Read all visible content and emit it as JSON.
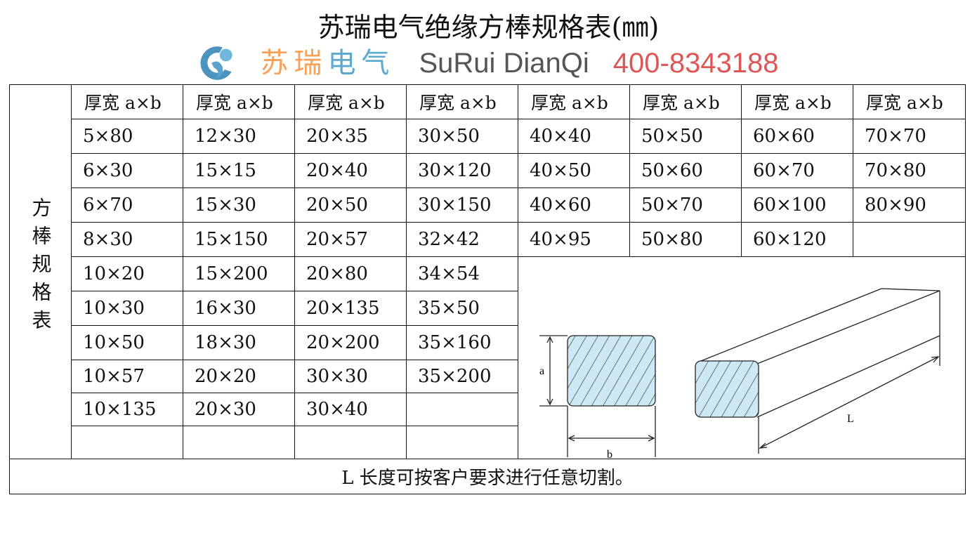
{
  "title": "苏瑞电气绝缘方棒规格表(㎜)",
  "side_label": "方棒规格表",
  "header_label": "厚宽 a×b",
  "columns": [
    [
      "5×80",
      "6×30",
      "6×70",
      "8×30",
      "10×20",
      "10×30",
      "10×50",
      "10×57",
      "10×135",
      "",
      ""
    ],
    [
      "12×30",
      "15×15",
      "15×30",
      "15×150",
      "15×200",
      "16×30",
      "18×30",
      "20×20",
      "20×30",
      "",
      ""
    ],
    [
      "20×35",
      "20×40",
      "20×50",
      "20×57",
      "20×80",
      "20×135",
      "20×200",
      "30×30",
      "30×40",
      "",
      ""
    ],
    [
      "30×50",
      "30×120",
      "30×150",
      "32×42",
      "34×54",
      "35×50",
      "35×160",
      "35×200",
      "",
      "",
      ""
    ],
    [
      "40×40",
      "40×50",
      "40×60",
      "40×95"
    ],
    [
      "50×50",
      "50×60",
      "50×70",
      "50×80"
    ],
    [
      "60×60",
      "60×70",
      "60×100",
      "60×120"
    ],
    [
      "70×70",
      "70×80",
      "80×90",
      ""
    ]
  ],
  "diagram": {
    "label_a": "a",
    "label_b": "b",
    "label_L": "L",
    "fill_color": "#cde9f6"
  },
  "footer": "L 长度可按客户要求进行任意切割。",
  "watermark": {
    "cn_1": "苏瑞",
    "cn_2": "电气",
    "en": "SuRui DianQi",
    "phone": "400-8343188",
    "colors": {
      "orange": "#f6a25a",
      "blue": "#5ea9d0",
      "red": "#e05555"
    }
  }
}
